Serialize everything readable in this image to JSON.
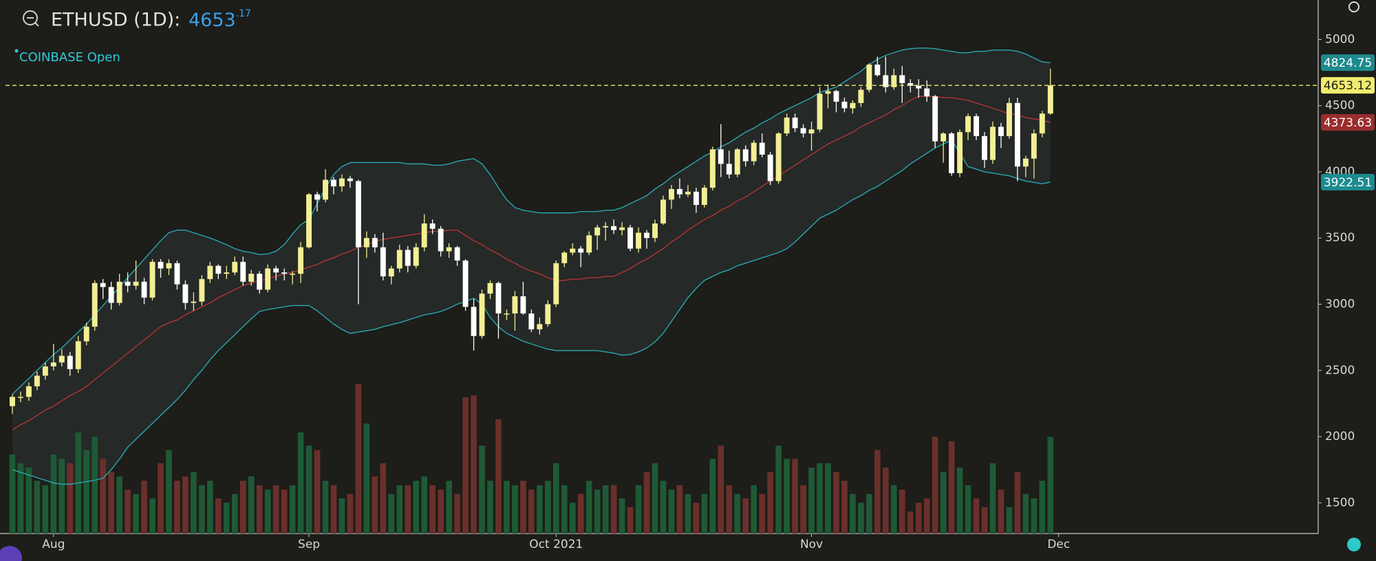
{
  "header": {
    "symbol": "ETHUSD (1D):",
    "price": "4653",
    "price_decimals": ".17",
    "exchange": "COINBASE Open"
  },
  "chart_data": {
    "type": "candlestick",
    "ohlc": [
      [
        2230,
        2320,
        2170,
        2300
      ],
      [
        2300,
        2340,
        2260,
        2300
      ],
      [
        2300,
        2410,
        2270,
        2380
      ],
      [
        2380,
        2490,
        2350,
        2460
      ],
      [
        2460,
        2560,
        2430,
        2530
      ],
      [
        2530,
        2700,
        2500,
        2560
      ],
      [
        2560,
        2660,
        2530,
        2610
      ],
      [
        2610,
        2640,
        2460,
        2510
      ],
      [
        2510,
        2760,
        2480,
        2720
      ],
      [
        2720,
        2860,
        2690,
        2830
      ],
      [
        2830,
        3180,
        2800,
        3160
      ],
      [
        3160,
        3190,
        3040,
        3130
      ],
      [
        3130,
        3170,
        2960,
        3010
      ],
      [
        3010,
        3230,
        2990,
        3170
      ],
      [
        3170,
        3240,
        3090,
        3140
      ],
      [
        3140,
        3330,
        3110,
        3170
      ],
      [
        3170,
        3200,
        3000,
        3050
      ],
      [
        3050,
        3340,
        3030,
        3320
      ],
      [
        3320,
        3340,
        3200,
        3270
      ],
      [
        3270,
        3340,
        3220,
        3310
      ],
      [
        3310,
        3330,
        3110,
        3150
      ],
      [
        3150,
        3180,
        2960,
        3010
      ],
      [
        3010,
        3090,
        2950,
        3020
      ],
      [
        3020,
        3220,
        2990,
        3190
      ],
      [
        3190,
        3320,
        3160,
        3290
      ],
      [
        3290,
        3300,
        3190,
        3230
      ],
      [
        3230,
        3290,
        3190,
        3240
      ],
      [
        3240,
        3360,
        3220,
        3320
      ],
      [
        3320,
        3360,
        3140,
        3170
      ],
      [
        3170,
        3260,
        3140,
        3230
      ],
      [
        3230,
        3250,
        3080,
        3110
      ],
      [
        3110,
        3300,
        3090,
        3270
      ],
      [
        3270,
        3290,
        3180,
        3240
      ],
      [
        3240,
        3270,
        3180,
        3230
      ],
      [
        3230,
        3250,
        3150,
        3230
      ],
      [
        3230,
        3470,
        3160,
        3430
      ],
      [
        3430,
        3840,
        3420,
        3830
      ],
      [
        3830,
        3850,
        3700,
        3790
      ],
      [
        3790,
        4020,
        3770,
        3940
      ],
      [
        3940,
        3960,
        3830,
        3890
      ],
      [
        3890,
        3980,
        3850,
        3950
      ],
      [
        3950,
        3970,
        3880,
        3930
      ],
      [
        3930,
        3940,
        3000,
        3430
      ],
      [
        3430,
        3550,
        3350,
        3500
      ],
      [
        3500,
        3530,
        3390,
        3430
      ],
      [
        3430,
        3540,
        3180,
        3210
      ],
      [
        3210,
        3290,
        3150,
        3270
      ],
      [
        3270,
        3450,
        3240,
        3410
      ],
      [
        3410,
        3440,
        3240,
        3290
      ],
      [
        3290,
        3460,
        3270,
        3430
      ],
      [
        3430,
        3680,
        3400,
        3610
      ],
      [
        3610,
        3640,
        3530,
        3570
      ],
      [
        3570,
        3590,
        3360,
        3400
      ],
      [
        3400,
        3460,
        3350,
        3430
      ],
      [
        3430,
        3440,
        3290,
        3330
      ],
      [
        3330,
        3340,
        2950,
        2980
      ],
      [
        2980,
        3040,
        2650,
        2760
      ],
      [
        2760,
        3110,
        2740,
        3080
      ],
      [
        3080,
        3180,
        3040,
        3160
      ],
      [
        3160,
        3170,
        2740,
        2930
      ],
      [
        2930,
        2960,
        2880,
        2930
      ],
      [
        2930,
        3100,
        2800,
        3060
      ],
      [
        3060,
        3170,
        2920,
        2930
      ],
      [
        2930,
        2960,
        2790,
        2810
      ],
      [
        2810,
        2900,
        2770,
        2850
      ],
      [
        2850,
        3030,
        2830,
        3000
      ],
      [
        3000,
        3330,
        2980,
        3310
      ],
      [
        3310,
        3400,
        3280,
        3390
      ],
      [
        3390,
        3460,
        3370,
        3420
      ],
      [
        3420,
        3440,
        3280,
        3390
      ],
      [
        3390,
        3550,
        3370,
        3520
      ],
      [
        3520,
        3600,
        3410,
        3580
      ],
      [
        3580,
        3620,
        3480,
        3590
      ],
      [
        3590,
        3640,
        3530,
        3560
      ],
      [
        3560,
        3620,
        3520,
        3580
      ],
      [
        3580,
        3600,
        3400,
        3420
      ],
      [
        3420,
        3580,
        3390,
        3540
      ],
      [
        3540,
        3560,
        3420,
        3500
      ],
      [
        3500,
        3640,
        3470,
        3610
      ],
      [
        3610,
        3820,
        3600,
        3790
      ],
      [
        3790,
        3900,
        3720,
        3870
      ],
      [
        3870,
        3950,
        3800,
        3830
      ],
      [
        3830,
        3900,
        3810,
        3850
      ],
      [
        3850,
        3880,
        3690,
        3750
      ],
      [
        3750,
        3900,
        3730,
        3880
      ],
      [
        3880,
        4190,
        3860,
        4170
      ],
      [
        4170,
        4360,
        3960,
        4060
      ],
      [
        4060,
        4160,
        3950,
        3980
      ],
      [
        3980,
        4180,
        3960,
        4170
      ],
      [
        4170,
        4200,
        4040,
        4080
      ],
      [
        4080,
        4240,
        4050,
        4220
      ],
      [
        4220,
        4290,
        4110,
        4130
      ],
      [
        4130,
        4150,
        3900,
        3930
      ],
      [
        3930,
        4300,
        3910,
        4290
      ],
      [
        4290,
        4440,
        4270,
        4410
      ],
      [
        4410,
        4440,
        4300,
        4330
      ],
      [
        4330,
        4360,
        4260,
        4290
      ],
      [
        4290,
        4380,
        4160,
        4320
      ],
      [
        4320,
        4640,
        4300,
        4590
      ],
      [
        4590,
        4660,
        4480,
        4610
      ],
      [
        4610,
        4620,
        4450,
        4530
      ],
      [
        4530,
        4560,
        4450,
        4480
      ],
      [
        4480,
        4540,
        4440,
        4520
      ],
      [
        4520,
        4640,
        4490,
        4620
      ],
      [
        4620,
        4820,
        4600,
        4810
      ],
      [
        4810,
        4870,
        4720,
        4730
      ],
      [
        4730,
        4870,
        4600,
        4640
      ],
      [
        4640,
        4780,
        4620,
        4730
      ],
      [
        4730,
        4800,
        4520,
        4670
      ],
      [
        4670,
        4700,
        4600,
        4650
      ],
      [
        4650,
        4700,
        4560,
        4630
      ],
      [
        4630,
        4690,
        4530,
        4570
      ],
      [
        4570,
        4580,
        4180,
        4230
      ],
      [
        4230,
        4300,
        4070,
        4290
      ],
      [
        4290,
        4300,
        3970,
        3990
      ],
      [
        3990,
        4320,
        3960,
        4300
      ],
      [
        4300,
        4440,
        4240,
        4420
      ],
      [
        4420,
        4440,
        4240,
        4270
      ],
      [
        4270,
        4300,
        4030,
        4090
      ],
      [
        4090,
        4380,
        4060,
        4340
      ],
      [
        4340,
        4370,
        4180,
        4270
      ],
      [
        4270,
        4560,
        4250,
        4520
      ],
      [
        4520,
        4560,
        3930,
        4040
      ],
      [
        4040,
        4120,
        3960,
        4100
      ],
      [
        4100,
        4320,
        3950,
        4290
      ],
      [
        4290,
        4460,
        4260,
        4440
      ],
      [
        4440,
        4780,
        4430,
        4653.12
      ]
    ],
    "volume": [
      90,
      80,
      75,
      60,
      55,
      90,
      85,
      80,
      115,
      95,
      110,
      85,
      70,
      65,
      50,
      45,
      60,
      40,
      80,
      95,
      60,
      65,
      70,
      55,
      60,
      40,
      35,
      45,
      60,
      65,
      55,
      50,
      55,
      50,
      55,
      115,
      100,
      95,
      60,
      55,
      40,
      45,
      170,
      125,
      65,
      80,
      45,
      55,
      55,
      60,
      65,
      55,
      50,
      60,
      45,
      155,
      157,
      100,
      60,
      130,
      60,
      55,
      60,
      50,
      55,
      60,
      80,
      55,
      35,
      45,
      60,
      50,
      55,
      55,
      40,
      30,
      55,
      70,
      80,
      60,
      50,
      55,
      45,
      35,
      45,
      85,
      100,
      55,
      45,
      40,
      55,
      45,
      70,
      100,
      85,
      85,
      55,
      75,
      80,
      80,
      70,
      60,
      45,
      35,
      45,
      95,
      75,
      55,
      50,
      25,
      35,
      40,
      110,
      70,
      105,
      75,
      55,
      40,
      30,
      80,
      50,
      30,
      70,
      45,
      40,
      60,
      110
    ],
    "bands": {
      "upper": [
        2320,
        2380,
        2440,
        2500,
        2560,
        2620,
        2670,
        2730,
        2790,
        2850,
        2920,
        2990,
        3060,
        3130,
        3200,
        3270,
        3340,
        3410,
        3480,
        3540,
        3560,
        3560,
        3540,
        3520,
        3500,
        3475,
        3450,
        3420,
        3400,
        3390,
        3375,
        3380,
        3400,
        3450,
        3530,
        3600,
        3640,
        3760,
        3880,
        3980,
        4040,
        4070,
        4070,
        4070,
        4070,
        4070,
        4070,
        4070,
        4060,
        4060,
        4060,
        4050,
        4050,
        4060,
        4080,
        4090,
        4100,
        4060,
        3980,
        3880,
        3790,
        3730,
        3710,
        3700,
        3690,
        3690,
        3690,
        3690,
        3690,
        3700,
        3700,
        3700,
        3710,
        3710,
        3730,
        3760,
        3790,
        3820,
        3870,
        3910,
        3960,
        4000,
        4040,
        4080,
        4120,
        4150,
        4190,
        4220,
        4260,
        4300,
        4330,
        4370,
        4400,
        4440,
        4470,
        4500,
        4530,
        4560,
        4600,
        4620,
        4640,
        4680,
        4720,
        4760,
        4810,
        4850,
        4880,
        4900,
        4920,
        4930,
        4935,
        4935,
        4930,
        4920,
        4910,
        4900,
        4900,
        4910,
        4910,
        4920,
        4920,
        4920,
        4910,
        4890,
        4860,
        4830,
        4824.75
      ],
      "middle": [
        2050,
        2090,
        2120,
        2160,
        2200,
        2230,
        2270,
        2310,
        2340,
        2380,
        2430,
        2480,
        2530,
        2580,
        2630,
        2680,
        2730,
        2780,
        2830,
        2860,
        2880,
        2920,
        2950,
        2980,
        3010,
        3050,
        3080,
        3110,
        3140,
        3160,
        3180,
        3190,
        3210,
        3230,
        3240,
        3260,
        3280,
        3300,
        3330,
        3350,
        3380,
        3400,
        3430,
        3450,
        3475,
        3490,
        3500,
        3510,
        3520,
        3530,
        3540,
        3550,
        3550,
        3560,
        3560,
        3520,
        3480,
        3450,
        3410,
        3380,
        3340,
        3310,
        3275,
        3250,
        3230,
        3200,
        3180,
        3180,
        3190,
        3190,
        3200,
        3200,
        3210,
        3210,
        3240,
        3270,
        3310,
        3340,
        3380,
        3420,
        3470,
        3510,
        3560,
        3600,
        3640,
        3670,
        3710,
        3740,
        3780,
        3810,
        3850,
        3890,
        3930,
        3970,
        4010,
        4050,
        4090,
        4130,
        4170,
        4210,
        4240,
        4270,
        4300,
        4340,
        4370,
        4400,
        4430,
        4470,
        4500,
        4540,
        4570,
        4570,
        4570,
        4560,
        4560,
        4550,
        4540,
        4520,
        4500,
        4480,
        4460,
        4440,
        4430,
        4410,
        4400,
        4390,
        4373.63
      ],
      "lower": [
        1750,
        1730,
        1710,
        1690,
        1670,
        1650,
        1640,
        1640,
        1650,
        1660,
        1670,
        1685,
        1750,
        1830,
        1920,
        1980,
        2040,
        2100,
        2160,
        2220,
        2280,
        2350,
        2430,
        2500,
        2580,
        2650,
        2710,
        2770,
        2830,
        2890,
        2945,
        2960,
        2970,
        2980,
        2990,
        2990,
        2990,
        2950,
        2900,
        2850,
        2810,
        2780,
        2790,
        2800,
        2810,
        2830,
        2845,
        2860,
        2880,
        2900,
        2920,
        2930,
        2945,
        2970,
        3000,
        3020,
        3045,
        3000,
        2900,
        2830,
        2780,
        2750,
        2720,
        2700,
        2680,
        2660,
        2650,
        2650,
        2650,
        2650,
        2650,
        2650,
        2640,
        2630,
        2615,
        2620,
        2640,
        2670,
        2715,
        2780,
        2870,
        2960,
        3050,
        3120,
        3180,
        3210,
        3240,
        3260,
        3290,
        3310,
        3330,
        3350,
        3370,
        3390,
        3420,
        3470,
        3530,
        3590,
        3650,
        3680,
        3710,
        3750,
        3790,
        3820,
        3860,
        3890,
        3930,
        3970,
        4010,
        4060,
        4100,
        4140,
        4180,
        4210,
        4240,
        4140,
        4040,
        4020,
        4000,
        3990,
        3980,
        3970,
        3950,
        3930,
        3920,
        3910,
        3922.51
      ]
    },
    "up_color": "#f3ef94",
    "down_color": "#ffffff",
    "volume_up_color": "#1e5a35",
    "volume_down_color": "#6a302b",
    "band_color": "#2aa7b0",
    "middle_color": "#b23636",
    "band_fill": "#252927",
    "last_price_color": "#f1ec6e",
    "xlim": [
      -1.5,
      158.5
    ],
    "xticks": [
      {
        "value": 5,
        "label": "Aug"
      },
      {
        "value": 36,
        "label": "Sep"
      },
      {
        "value": 66,
        "label": "Oct 2021"
      },
      {
        "value": 97,
        "label": "Nov"
      },
      {
        "value": 127,
        "label": "Dec"
      }
    ],
    "ylim": [
      1268,
      5298
    ],
    "yticks": [
      1500,
      2000,
      2500,
      3000,
      3500,
      4000,
      4500,
      5000
    ],
    "last_price_line": true
  }
}
